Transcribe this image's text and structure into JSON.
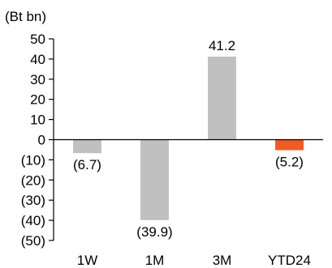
{
  "chart_data": {
    "type": "bar",
    "unit_label": "(Bt bn)",
    "categories": [
      "1W",
      "1M",
      "3M",
      "YTD24"
    ],
    "values": [
      -6.7,
      -39.9,
      41.2,
      -5.2
    ],
    "data_labels": [
      "(6.7)",
      "(39.9)",
      "41.2",
      "(5.2)"
    ],
    "bar_colors": [
      "#c0c0c0",
      "#c0c0c0",
      "#c0c0c0",
      "#f25a1e"
    ],
    "ylim": [
      -50,
      50
    ],
    "yticks": [
      50,
      40,
      30,
      20,
      10,
      0,
      -10,
      -20,
      -30,
      -40,
      -50
    ],
    "ytick_labels": [
      "50",
      "40",
      "30",
      "20",
      "10",
      "0",
      "(10)",
      "(20)",
      "(30)",
      "(40)",
      "(50)"
    ],
    "grid": false,
    "legend": "none"
  }
}
